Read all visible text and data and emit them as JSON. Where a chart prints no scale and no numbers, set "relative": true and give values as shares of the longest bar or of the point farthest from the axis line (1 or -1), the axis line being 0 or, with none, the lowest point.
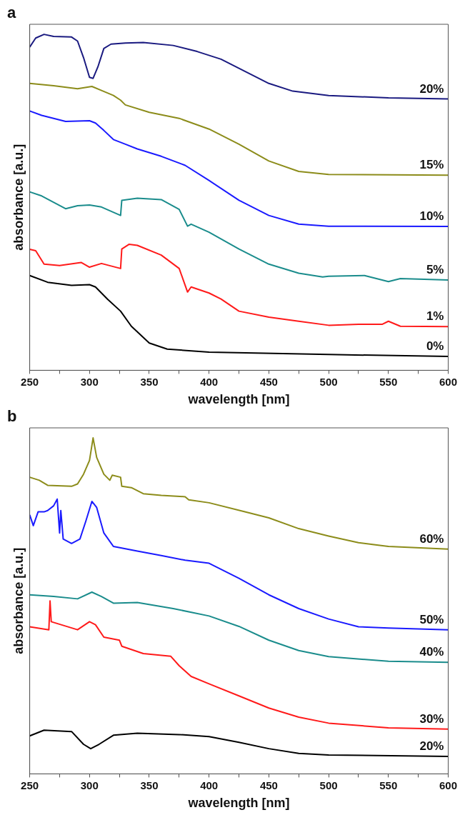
{
  "chart_data": [
    {
      "type": "line",
      "title": "a",
      "xlabel": "wavelength [nm]",
      "ylabel": "absorbance [a.u.]",
      "relative": true,
      "legend": false,
      "grid": false,
      "tick_labels": "x",
      "marker": "none",
      "line_style": "solid",
      "xlim": [
        250,
        600
      ],
      "xticks": [
        250,
        {
          "value": 275,
          "label": null
        },
        300,
        {
          "value": 325,
          "label": null
        },
        350,
        {
          "value": 375,
          "label": null
        },
        400,
        {
          "value": 425,
          "label": null
        },
        450,
        {
          "value": 475,
          "label": null
        },
        500,
        {
          "value": 525,
          "label": null
        },
        550,
        {
          "value": 575,
          "label": null
        },
        600
      ],
      "series": [
        {
          "name": "20%",
          "color": "#1a1a80",
          "x": [
            250,
            255,
            262,
            270,
            285,
            290,
            295,
            300,
            303,
            307,
            312,
            318,
            330,
            345,
            370,
            390,
            410,
            430,
            450,
            470,
            500,
            550,
            600
          ],
          "values": [
            0.962,
            0.989,
            1.0,
            0.994,
            0.992,
            0.98,
            0.931,
            0.872,
            0.869,
            0.903,
            0.958,
            0.971,
            0.974,
            0.976,
            0.967,
            0.949,
            0.926,
            0.89,
            0.854,
            0.831,
            0.818,
            0.811,
            0.808
          ]
        },
        {
          "name": "15%",
          "color": "#8c8c1a",
          "x": [
            250,
            270,
            290,
            302,
            310,
            320,
            326,
            330,
            350,
            375,
            400,
            425,
            450,
            475,
            500,
            600
          ],
          "values": [
            0.854,
            0.847,
            0.838,
            0.845,
            0.833,
            0.818,
            0.804,
            0.79,
            0.768,
            0.75,
            0.718,
            0.673,
            0.623,
            0.592,
            0.583,
            0.581
          ]
        },
        {
          "name": "10%",
          "color": "#1a1aff",
          "x": [
            250,
            260,
            280,
            300,
            305,
            312,
            320,
            330,
            340,
            360,
            380,
            400,
            425,
            450,
            475,
            500,
            600
          ],
          "values": [
            0.772,
            0.759,
            0.741,
            0.743,
            0.736,
            0.714,
            0.687,
            0.673,
            0.659,
            0.637,
            0.61,
            0.565,
            0.506,
            0.461,
            0.435,
            0.429,
            0.428
          ]
        },
        {
          "name": "5%",
          "color": "#1a8c8c",
          "x": [
            250,
            260,
            280,
            290,
            300,
            310,
            326,
            327,
            340,
            360,
            375,
            382,
            385,
            400,
            425,
            450,
            475,
            495,
            500,
            530,
            550,
            560,
            600
          ],
          "values": [
            0.531,
            0.519,
            0.481,
            0.49,
            0.492,
            0.486,
            0.461,
            0.506,
            0.512,
            0.508,
            0.479,
            0.429,
            0.435,
            0.411,
            0.361,
            0.316,
            0.289,
            0.278,
            0.28,
            0.282,
            0.264,
            0.273,
            0.269
          ]
        },
        {
          "name": "1%",
          "color": "#ff1a1a",
          "x": [
            250,
            255,
            262,
            275,
            293,
            300,
            310,
            326,
            327,
            333,
            340,
            360,
            375,
            382,
            385,
            400,
            410,
            425,
            450,
            475,
            500,
            525,
            545,
            550,
            560,
            600
          ],
          "values": [
            0.36,
            0.356,
            0.316,
            0.312,
            0.321,
            0.307,
            0.318,
            0.303,
            0.361,
            0.375,
            0.372,
            0.343,
            0.303,
            0.233,
            0.248,
            0.23,
            0.212,
            0.176,
            0.158,
            0.146,
            0.134,
            0.137,
            0.137,
            0.146,
            0.131,
            0.13
          ]
        },
        {
          "name": "0%",
          "color": "#000000",
          "x": [
            250,
            265,
            285,
            300,
            305,
            315,
            326,
            335,
            350,
            365,
            400,
            500,
            600
          ],
          "values": [
            0.282,
            0.262,
            0.253,
            0.255,
            0.248,
            0.212,
            0.176,
            0.131,
            0.081,
            0.063,
            0.054,
            0.047,
            0.041
          ]
        }
      ]
    },
    {
      "type": "line",
      "title": "b",
      "xlabel": "wavelength [nm]",
      "ylabel": "absorbance [a.u.]",
      "relative": true,
      "legend": false,
      "grid": false,
      "tick_labels": "x",
      "marker": "none",
      "line_style": "solid",
      "xlim": [
        250,
        600
      ],
      "xticks": [
        250,
        {
          "value": 275,
          "label": null
        },
        300,
        {
          "value": 325,
          "label": null
        },
        350,
        {
          "value": 375,
          "label": null
        },
        400,
        {
          "value": 425,
          "label": null
        },
        450,
        {
          "value": 475,
          "label": null
        },
        500,
        {
          "value": 525,
          "label": null
        },
        550,
        {
          "value": 575,
          "label": null
        },
        600
      ],
      "series": [
        {
          "name": "60%",
          "color": "#8c8c1a",
          "x": [
            250,
            258,
            265,
            285,
            290,
            295,
            300,
            303,
            306,
            312,
            317,
            319,
            326,
            327,
            335,
            345,
            360,
            380,
            383,
            400,
            430,
            450,
            475,
            500,
            525,
            550,
            600
          ],
          "values": [
            0.883,
            0.874,
            0.859,
            0.856,
            0.863,
            0.892,
            0.933,
            1.0,
            0.942,
            0.892,
            0.874,
            0.889,
            0.883,
            0.856,
            0.852,
            0.834,
            0.829,
            0.825,
            0.816,
            0.807,
            0.78,
            0.762,
            0.73,
            0.708,
            0.688,
            0.677,
            0.669
          ]
        },
        {
          "name": "50%",
          "color": "#1a1aff",
          "x": [
            250,
            253,
            257,
            262,
            265,
            270,
            273,
            275,
            276,
            278,
            285,
            292,
            297,
            302,
            306,
            312,
            320,
            340,
            360,
            380,
            400,
            425,
            450,
            475,
            500,
            525,
            550,
            600
          ],
          "values": [
            0.771,
            0.739,
            0.78,
            0.78,
            0.784,
            0.798,
            0.818,
            0.717,
            0.784,
            0.699,
            0.686,
            0.699,
            0.753,
            0.811,
            0.793,
            0.717,
            0.677,
            0.663,
            0.65,
            0.636,
            0.627,
            0.582,
            0.533,
            0.492,
            0.461,
            0.438,
            0.434,
            0.429
          ]
        },
        {
          "name": "40%",
          "color": "#1a8c8c",
          "x": [
            250,
            270,
            290,
            302,
            310,
            320,
            340,
            370,
            400,
            425,
            450,
            475,
            500,
            550,
            600
          ],
          "values": [
            0.533,
            0.528,
            0.521,
            0.541,
            0.528,
            0.508,
            0.51,
            0.492,
            0.47,
            0.439,
            0.398,
            0.367,
            0.349,
            0.335,
            0.332
          ]
        },
        {
          "name": "30%",
          "color": "#ff1a1a",
          "x": [
            250,
            266,
            267,
            268,
            290,
            300,
            305,
            312,
            325,
            327,
            345,
            368,
            375,
            385,
            400,
            425,
            450,
            475,
            500,
            550,
            600
          ],
          "values": [
            0.438,
            0.429,
            0.515,
            0.453,
            0.429,
            0.453,
            0.444,
            0.407,
            0.398,
            0.38,
            0.358,
            0.35,
            0.322,
            0.29,
            0.268,
            0.232,
            0.196,
            0.169,
            0.151,
            0.137,
            0.133
          ]
        },
        {
          "name": "20%",
          "color": "#000000",
          "x": [
            250,
            262,
            285,
            295,
            301,
            308,
            320,
            340,
            375,
            400,
            425,
            450,
            475,
            500,
            600
          ],
          "values": [
            0.113,
            0.13,
            0.126,
            0.088,
            0.075,
            0.088,
            0.115,
            0.121,
            0.117,
            0.111,
            0.094,
            0.075,
            0.061,
            0.056,
            0.052
          ]
        }
      ]
    }
  ]
}
